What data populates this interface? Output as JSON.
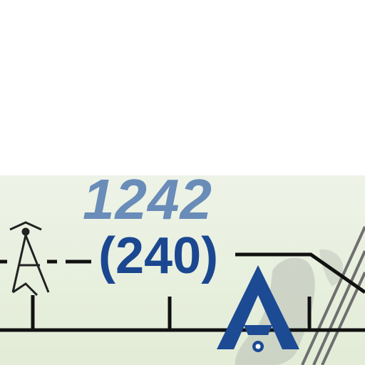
{
  "chart_feature": {
    "elevation_msl": "1242",
    "height_agl": "(240)"
  },
  "colors": {
    "background_tint": "#e2ecd6",
    "elevation_text": "#5b82b4",
    "height_text": "#1b4791",
    "airport_symbol": "#1c4a93",
    "obstruction_symbol": "#222222",
    "route_line": "#111111",
    "terrain_shading": "#c4cbbf",
    "road": "#6f6f6f"
  },
  "symbols": {
    "obstruction": "lighted-tower-icon",
    "airport": "airport-a-icon"
  }
}
